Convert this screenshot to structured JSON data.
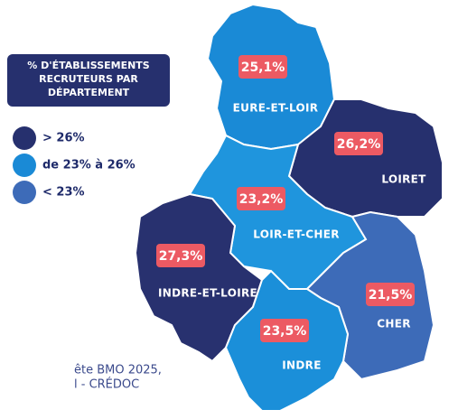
{
  "legend": {
    "title": [
      "% D'ÉTABLISSEMENTS",
      "RECRUTEURS PAR",
      "DÉPARTEMENT"
    ],
    "items": [
      "> 26%",
      "de 23% à 26%",
      "< 23%"
    ]
  },
  "regions": [
    {
      "name": "EURE-ET-LOIR",
      "value": "25,1%"
    },
    {
      "name": "LOIRET",
      "value": "26,2%"
    },
    {
      "name": "LOIR-ET-CHER",
      "value": "23,2%"
    },
    {
      "name": "INDRE-ET-LOIRE",
      "value": "27,3%"
    },
    {
      "name": "CHER",
      "value": "21,5%"
    },
    {
      "name": "INDRE",
      "value": "23,5%"
    }
  ],
  "source": [
    "ête BMO 2025,",
    "l - CRÉDOC"
  ]
}
